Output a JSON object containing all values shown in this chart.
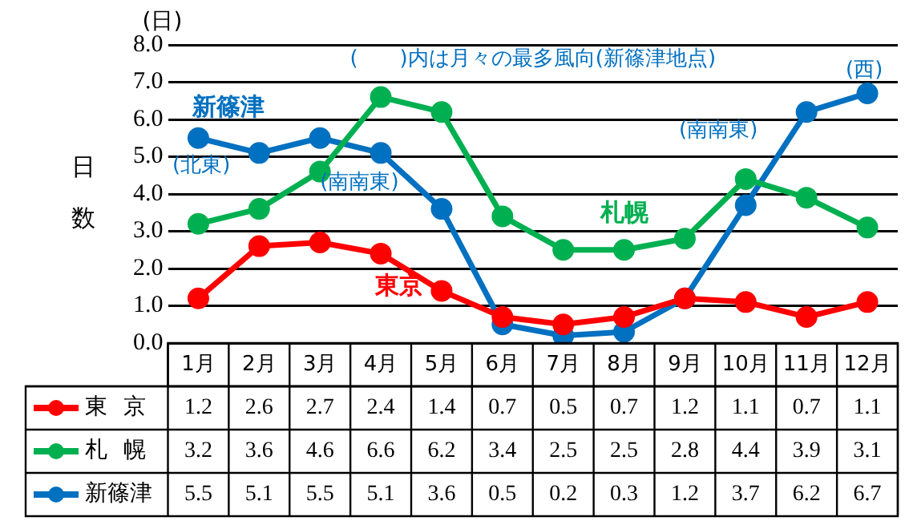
{
  "chart_data": {
    "type": "line",
    "ylabel": "日数",
    "categories": [
      "1月",
      "2月",
      "3月",
      "4月",
      "5月",
      "6月",
      "7月",
      "8月",
      "9月",
      "10月",
      "11月",
      "12月"
    ],
    "series": [
      {
        "name": "東京",
        "color": "#ff0000",
        "values": [
          1.2,
          2.6,
          2.7,
          2.4,
          1.4,
          0.7,
          0.5,
          0.7,
          1.2,
          1.1,
          0.7,
          1.1
        ]
      },
      {
        "name": "札幌",
        "color": "#00b050",
        "values": [
          3.2,
          3.6,
          4.6,
          6.6,
          6.2,
          3.4,
          2.5,
          2.5,
          2.8,
          4.4,
          3.9,
          3.1
        ]
      },
      {
        "name": "新篠津",
        "color": "#0070c0",
        "values": [
          5.5,
          5.1,
          5.5,
          5.1,
          3.6,
          0.5,
          0.2,
          0.3,
          1.2,
          3.7,
          6.2,
          6.7
        ]
      }
    ],
    "ylim": [
      0,
      8
    ],
    "yticks": [
      {
        "value": 0,
        "label": "0.0"
      },
      {
        "value": 1,
        "label": "1.0"
      },
      {
        "value": 2,
        "label": "2.0"
      },
      {
        "value": 3,
        "label": "3.0"
      },
      {
        "value": 4,
        "label": "4.0"
      },
      {
        "value": 5,
        "label": "5.0"
      },
      {
        "value": 6,
        "label": "6.0"
      },
      {
        "value": 7,
        "label": "7.0"
      },
      {
        "value": 8,
        "label": "8.0"
      }
    ],
    "grid": "y",
    "marker": "circle",
    "line_style": "solid",
    "legend": "bottom",
    "data_labels": true,
    "annotations": [
      "(日)",
      "(　　)内は月々の最多風向(新篠津地点)",
      "(北東)",
      "(南南東)",
      "(南南東)",
      "(西)"
    ]
  }
}
